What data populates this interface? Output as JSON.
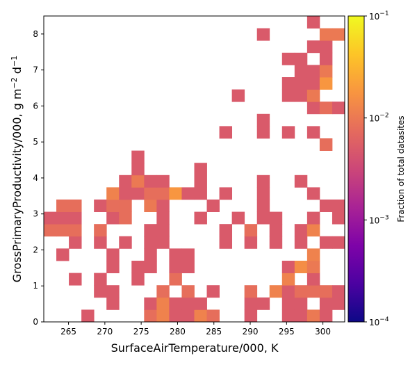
{
  "chart_data": {
    "type": "heatmap",
    "xlabel": "SurfaceAirTemperature/000,  K",
    "ylabel": "GrossPrimaryProductivity/000,  g m",
    "ylabel_units_sup1": "−2",
    "ylabel_units_mid": " d",
    "ylabel_units_sup2": "−1",
    "colorbar_label": "Fraction of total datasites",
    "xlim": [
      261.6,
      303.0
    ],
    "ylim": [
      0,
      8.5
    ],
    "bin_width_x": 1.725,
    "bin_height_y": 0.34,
    "x_bin_start": 261.6,
    "xticks": [
      265,
      270,
      275,
      280,
      285,
      290,
      295,
      300
    ],
    "yticks": [
      0,
      1,
      2,
      3,
      4,
      5,
      6,
      7,
      8
    ],
    "colorbar": {
      "scale": "log",
      "range": [
        0.0001,
        0.1
      ],
      "colormap": "plasma",
      "ticks": [
        {
          "value": 0.1,
          "base": "10",
          "exp": "−1"
        },
        {
          "value": 0.01,
          "base": "10",
          "exp": "−2"
        },
        {
          "value": 0.001,
          "base": "10",
          "exp": "−3"
        },
        {
          "value": 0.0001,
          "base": "10",
          "exp": "−4"
        }
      ]
    },
    "cells_note": "each cell: [x bin index, y bin index, fraction of total datasites]",
    "cells": [
      [
        3,
        0,
        0.005
      ],
      [
        8,
        0,
        0.008
      ],
      [
        9,
        0,
        0.012
      ],
      [
        10,
        0,
        0.005
      ],
      [
        11,
        0,
        0.005
      ],
      [
        12,
        0,
        0.012
      ],
      [
        13,
        0,
        0.008
      ],
      [
        16,
        0,
        0.005
      ],
      [
        19,
        0,
        0.005
      ],
      [
        20,
        0,
        0.005
      ],
      [
        21,
        0,
        0.01
      ],
      [
        22,
        0,
        0.005
      ],
      [
        5,
        1,
        0.005
      ],
      [
        8,
        1,
        0.005
      ],
      [
        9,
        1,
        0.012
      ],
      [
        10,
        1,
        0.005
      ],
      [
        11,
        1,
        0.005
      ],
      [
        12,
        1,
        0.005
      ],
      [
        16,
        1,
        0.005
      ],
      [
        17,
        1,
        0.005
      ],
      [
        19,
        1,
        0.005
      ],
      [
        20,
        1,
        0.005
      ],
      [
        22,
        1,
        0.005
      ],
      [
        23,
        1,
        0.005
      ],
      [
        4,
        2,
        0.005
      ],
      [
        5,
        2,
        0.005
      ],
      [
        9,
        2,
        0.008
      ],
      [
        11,
        2,
        0.008
      ],
      [
        13,
        2,
        0.005
      ],
      [
        16,
        2,
        0.008
      ],
      [
        18,
        2,
        0.012
      ],
      [
        19,
        2,
        0.005
      ],
      [
        20,
        2,
        0.008
      ],
      [
        21,
        2,
        0.008
      ],
      [
        22,
        2,
        0.008
      ],
      [
        23,
        2,
        0.005
      ],
      [
        2,
        3,
        0.005
      ],
      [
        4,
        3,
        0.005
      ],
      [
        7,
        3,
        0.005
      ],
      [
        10,
        3,
        0.008
      ],
      [
        19,
        3,
        0.012
      ],
      [
        21,
        3,
        0.005
      ],
      [
        5,
        4,
        0.005
      ],
      [
        7,
        4,
        0.005
      ],
      [
        8,
        4,
        0.005
      ],
      [
        10,
        4,
        0.005
      ],
      [
        11,
        4,
        0.005
      ],
      [
        19,
        4,
        0.005
      ],
      [
        20,
        4,
        0.015
      ],
      [
        21,
        4,
        0.01
      ],
      [
        1,
        5,
        0.005
      ],
      [
        5,
        5,
        0.005
      ],
      [
        8,
        5,
        0.005
      ],
      [
        10,
        5,
        0.005
      ],
      [
        11,
        5,
        0.005
      ],
      [
        21,
        5,
        0.012
      ],
      [
        2,
        6,
        0.005
      ],
      [
        4,
        6,
        0.005
      ],
      [
        6,
        6,
        0.005
      ],
      [
        8,
        6,
        0.005
      ],
      [
        9,
        6,
        0.005
      ],
      [
        14,
        6,
        0.005
      ],
      [
        16,
        6,
        0.005
      ],
      [
        18,
        6,
        0.005
      ],
      [
        20,
        6,
        0.005
      ],
      [
        22,
        6,
        0.005
      ],
      [
        23,
        6,
        0.005
      ],
      [
        0,
        7,
        0.008
      ],
      [
        1,
        7,
        0.008
      ],
      [
        2,
        7,
        0.008
      ],
      [
        4,
        7,
        0.008
      ],
      [
        8,
        7,
        0.005
      ],
      [
        9,
        7,
        0.005
      ],
      [
        14,
        7,
        0.005
      ],
      [
        16,
        7,
        0.008
      ],
      [
        18,
        7,
        0.005
      ],
      [
        20,
        7,
        0.005
      ],
      [
        21,
        7,
        0.012
      ],
      [
        0,
        8,
        0.005
      ],
      [
        1,
        8,
        0.005
      ],
      [
        2,
        8,
        0.005
      ],
      [
        5,
        8,
        0.005
      ],
      [
        6,
        8,
        0.008
      ],
      [
        9,
        8,
        0.005
      ],
      [
        12,
        8,
        0.005
      ],
      [
        15,
        8,
        0.005
      ],
      [
        17,
        8,
        0.005
      ],
      [
        18,
        8,
        0.005
      ],
      [
        21,
        8,
        0.005
      ],
      [
        23,
        8,
        0.005
      ],
      [
        1,
        9,
        0.008
      ],
      [
        2,
        9,
        0.008
      ],
      [
        4,
        9,
        0.005
      ],
      [
        5,
        9,
        0.008
      ],
      [
        6,
        9,
        0.008
      ],
      [
        8,
        9,
        0.01
      ],
      [
        9,
        9,
        0.005
      ],
      [
        13,
        9,
        0.005
      ],
      [
        17,
        9,
        0.005
      ],
      [
        22,
        9,
        0.005
      ],
      [
        23,
        9,
        0.005
      ],
      [
        5,
        10,
        0.012
      ],
      [
        6,
        10,
        0.005
      ],
      [
        7,
        10,
        0.005
      ],
      [
        8,
        10,
        0.008
      ],
      [
        9,
        10,
        0.008
      ],
      [
        10,
        10,
        0.018
      ],
      [
        11,
        10,
        0.005
      ],
      [
        12,
        10,
        0.005
      ],
      [
        14,
        10,
        0.005
      ],
      [
        17,
        10,
        0.005
      ],
      [
        21,
        10,
        0.005
      ],
      [
        6,
        11,
        0.005
      ],
      [
        7,
        11,
        0.01
      ],
      [
        8,
        11,
        0.005
      ],
      [
        9,
        11,
        0.005
      ],
      [
        12,
        11,
        0.005
      ],
      [
        17,
        11,
        0.005
      ],
      [
        20,
        11,
        0.005
      ],
      [
        7,
        12,
        0.005
      ],
      [
        12,
        12,
        0.005
      ],
      [
        7,
        13,
        0.005
      ],
      [
        22,
        14,
        0.008
      ],
      [
        14,
        15,
        0.005
      ],
      [
        17,
        15,
        0.005
      ],
      [
        19,
        15,
        0.005
      ],
      [
        21,
        15,
        0.005
      ],
      [
        17,
        16,
        0.005
      ],
      [
        21,
        17,
        0.005
      ],
      [
        22,
        17,
        0.008
      ],
      [
        23,
        17,
        0.005
      ],
      [
        15,
        18,
        0.005
      ],
      [
        19,
        18,
        0.005
      ],
      [
        20,
        18,
        0.005
      ],
      [
        21,
        18,
        0.01
      ],
      [
        19,
        19,
        0.005
      ],
      [
        20,
        19,
        0.005
      ],
      [
        21,
        19,
        0.005
      ],
      [
        22,
        19,
        0.018
      ],
      [
        20,
        20,
        0.005
      ],
      [
        21,
        20,
        0.005
      ],
      [
        22,
        20,
        0.01
      ],
      [
        19,
        21,
        0.005
      ],
      [
        20,
        21,
        0.005
      ],
      [
        22,
        21,
        0.005
      ],
      [
        21,
        22,
        0.005
      ],
      [
        22,
        22,
        0.005
      ],
      [
        17,
        23,
        0.005
      ],
      [
        22,
        23,
        0.01
      ],
      [
        23,
        23,
        0.01
      ],
      [
        21,
        24,
        0.005
      ]
    ]
  }
}
